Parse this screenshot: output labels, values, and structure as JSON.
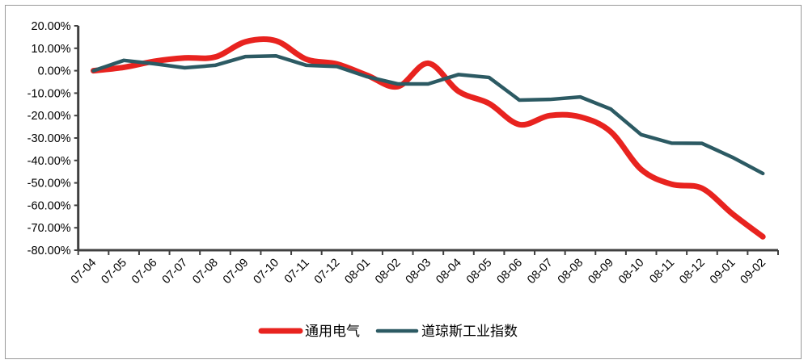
{
  "chart_data": {
    "type": "line",
    "title": "",
    "xlabel": "",
    "ylabel": "",
    "ylim": [
      -0.8,
      0.2
    ],
    "yticks": [
      "20.00%",
      "10.00%",
      "0.00%",
      "-10.00%",
      "-20.00%",
      "-30.00%",
      "-40.00%",
      "-50.00%",
      "-60.00%",
      "-70.00%",
      "-80.00%"
    ],
    "x_labels": [
      "07-04",
      "07-05",
      "07-06",
      "07-07",
      "07-08",
      "07-09",
      "07-10",
      "07-11",
      "07-12",
      "08-01",
      "08-02",
      "08-03",
      "08-04",
      "08-05",
      "08-06",
      "08-07",
      "08-08",
      "08-09",
      "08-10",
      "08-11",
      "08-12",
      "09-01",
      "09-02"
    ],
    "grid": false,
    "legend_position": "bottom",
    "series": [
      {
        "name": "通用电气",
        "color": "#e8231f",
        "smooth": true,
        "values": [
          0.0,
          0.015,
          0.042,
          0.057,
          0.061,
          0.129,
          0.133,
          0.051,
          0.03,
          -0.021,
          -0.071,
          0.033,
          -0.092,
          -0.146,
          -0.24,
          -0.2,
          -0.206,
          -0.272,
          -0.44,
          -0.506,
          -0.524,
          -0.638,
          -0.74
        ]
      },
      {
        "name": "道琼斯工业指数",
        "color": "#2c5a63",
        "smooth": false,
        "values": [
          0.0,
          0.046,
          0.031,
          0.013,
          0.024,
          0.063,
          0.066,
          0.024,
          0.019,
          -0.027,
          -0.059,
          -0.059,
          -0.017,
          -0.03,
          -0.131,
          -0.128,
          -0.117,
          -0.171,
          -0.285,
          -0.323,
          -0.324,
          -0.386,
          -0.458
        ]
      }
    ]
  }
}
